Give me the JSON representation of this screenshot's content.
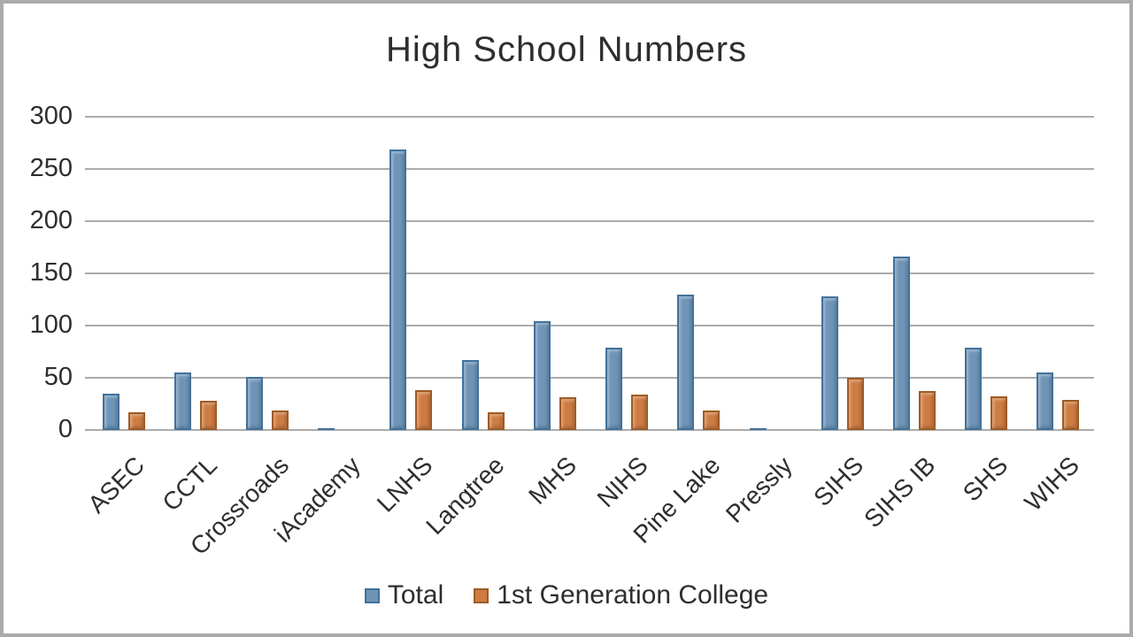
{
  "frame": {
    "border_color": "#ABABAB",
    "background": "#FFFFFF"
  },
  "chart_data": {
    "type": "bar",
    "title": "High School Numbers",
    "categories": [
      "ASEC",
      "CCTL",
      "Crossroads",
      "iAcademy",
      "LNHS",
      "Langtree",
      "MHS",
      "NIHS",
      "Pine Lake",
      "Pressly",
      "SIHS",
      "SIHS IB",
      "SHS",
      "WIHS"
    ],
    "series": [
      {
        "name": "Total",
        "color": "#6E94B7",
        "border_color": "#41719C",
        "values": [
          35,
          55,
          51,
          2,
          269,
          67,
          104,
          79,
          130,
          2,
          128,
          166,
          79,
          55
        ]
      },
      {
        "name": "1st Generation College",
        "color": "#CE7C42",
        "border_color": "#9E5B24",
        "values": [
          17,
          28,
          19,
          0,
          38,
          17,
          31,
          34,
          19,
          0,
          50,
          37,
          32,
          29
        ]
      }
    ],
    "y_ticks": [
      0,
      50,
      100,
      150,
      200,
      250,
      300
    ],
    "ylim": [
      0,
      300
    ],
    "xlabel": "",
    "ylabel": "",
    "grid": true,
    "gridline_color": "#ACACAC",
    "legend_position": "bottom",
    "text_color": "#2E2E2E"
  }
}
